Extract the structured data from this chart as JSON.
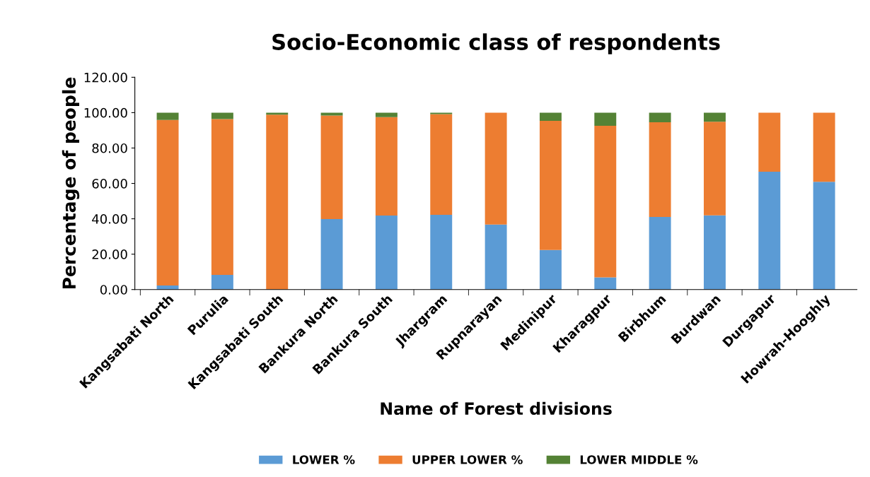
{
  "chart_data": {
    "type": "bar",
    "stacked": true,
    "title": "Socio-Economic class of respondents",
    "xlabel": "Name of Forest divisions",
    "ylabel": "Percentage of people",
    "categories": [
      "Kangsabati North",
      "Purulia",
      "Kangsabati South",
      "Bankura North",
      "Bankura South",
      "Jhargram",
      "Rupnarayan",
      "Medinipur",
      "Kharagpur",
      "Birbhum",
      "Burdwan",
      "Durgapur",
      "Howrah-Hooghly"
    ],
    "series": [
      {
        "name": "LOWER %",
        "color": "#5b9bd5",
        "values": [
          2.3,
          8.3,
          0,
          39.8,
          41.8,
          42.2,
          36.7,
          22.4,
          6.9,
          41.0,
          41.9,
          66.6,
          60.9
        ]
      },
      {
        "name": "UPPER LOWER %",
        "color": "#ed7d31",
        "values": [
          93.6,
          88.1,
          98.9,
          58.6,
          55.7,
          57.0,
          63.3,
          73.0,
          85.7,
          53.6,
          53.0,
          33.4,
          39.1
        ]
      },
      {
        "name": "LOWER MIDDLE %",
        "color": "#548235",
        "values": [
          4.1,
          3.6,
          1.1,
          1.6,
          2.5,
          0.8,
          0,
          4.6,
          7.4,
          5.4,
          5.1,
          0,
          0
        ]
      }
    ],
    "ylim": [
      0,
      120
    ],
    "yticks": [
      {
        "value": 0,
        "label": "0.00"
      },
      {
        "value": 20,
        "label": "20.00"
      },
      {
        "value": 40,
        "label": "40.00"
      },
      {
        "value": 60,
        "label": "60.00"
      },
      {
        "value": 80,
        "label": "80.00"
      },
      {
        "value": 100,
        "label": "100.00"
      },
      {
        "value": 120,
        "label": "120.00"
      }
    ],
    "grid": false,
    "legend": "bottom"
  }
}
